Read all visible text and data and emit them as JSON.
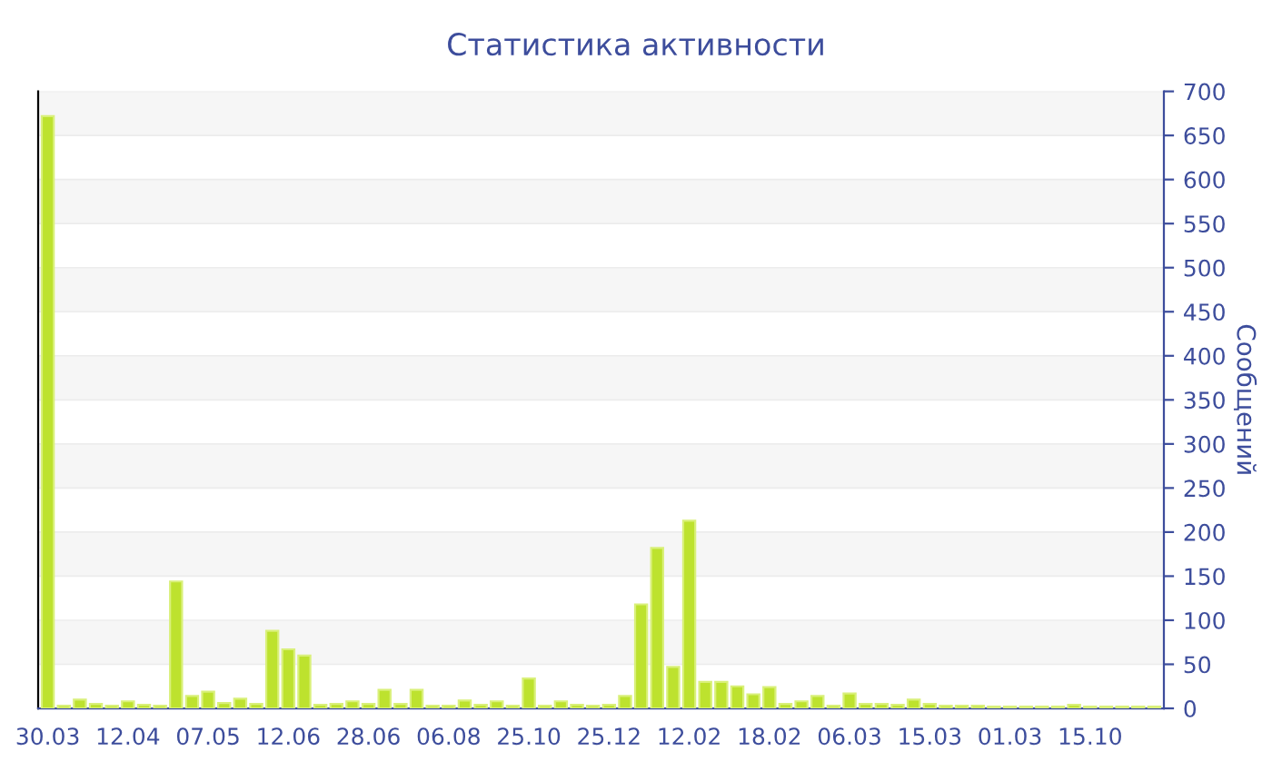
{
  "chart_data": {
    "type": "bar",
    "title": "Статистика активности",
    "ylabel": "Сообщений",
    "categories": [
      "30.03",
      null,
      null,
      null,
      null,
      "12.04",
      null,
      null,
      null,
      null,
      "07.05",
      null,
      null,
      null,
      null,
      "12.06",
      null,
      null,
      null,
      null,
      "28.06",
      null,
      null,
      null,
      null,
      "06.08",
      null,
      null,
      null,
      null,
      "25.10",
      null,
      null,
      null,
      null,
      "25.12",
      null,
      null,
      null,
      null,
      "12.02",
      null,
      null,
      null,
      null,
      "18.02",
      null,
      null,
      null,
      null,
      "06.03",
      null,
      null,
      null,
      null,
      "15.03",
      null,
      null,
      null,
      null,
      "01.03",
      null,
      null,
      null,
      null,
      "15.10",
      null,
      null,
      null,
      null
    ],
    "values": [
      672,
      3,
      10,
      5,
      3,
      8,
      4,
      3,
      144,
      14,
      19,
      6,
      11,
      5,
      88,
      67,
      60,
      4,
      5,
      8,
      5,
      21,
      5,
      21,
      3,
      3,
      9,
      4,
      8,
      3,
      34,
      3,
      8,
      4,
      3,
      4,
      14,
      118,
      182,
      47,
      213,
      30,
      30,
      25,
      16,
      24,
      5,
      8,
      14,
      3,
      17,
      5,
      5,
      4,
      10,
      5,
      3,
      3,
      3,
      2,
      2,
      2,
      2,
      2,
      4,
      2,
      2,
      2,
      2,
      2
    ],
    "color": "#bde22e",
    "ylim": [
      0,
      700
    ],
    "yticks": [
      0,
      50,
      100,
      150,
      200,
      250,
      300,
      350,
      400,
      450,
      500,
      550,
      600,
      650,
      700
    ],
    "grid": "y"
  }
}
